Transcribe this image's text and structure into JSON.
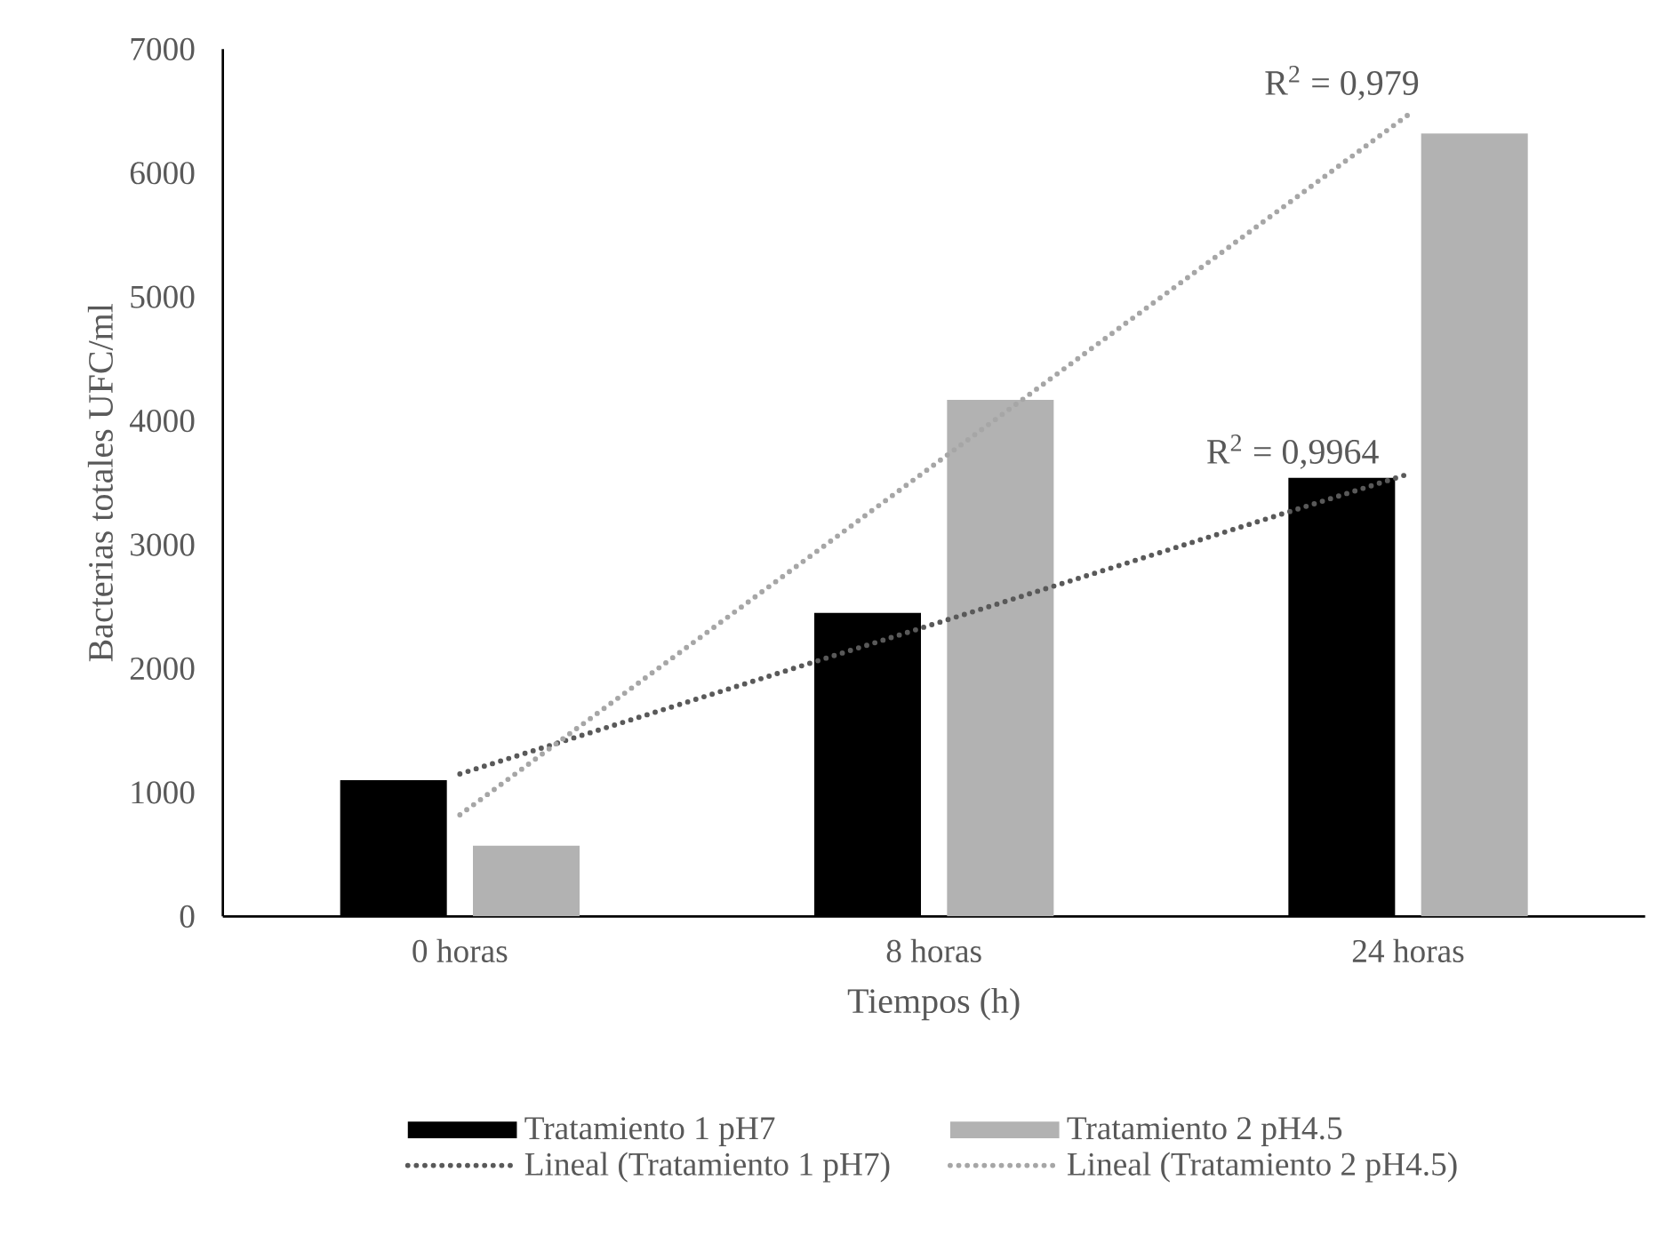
{
  "chart_data": {
    "type": "bar",
    "xlabel": "Tiempos (h)",
    "ylabel": "Bacterias totales UFC/ml",
    "categories": [
      "0 horas",
      "8 horas",
      "24 horas"
    ],
    "series": [
      {
        "name": "Tratamiento 1 pH7",
        "color": "#000000",
        "values": [
          1100,
          2450,
          3540
        ]
      },
      {
        "name": "Tratamiento 2 pH4.5",
        "color": "#b2b2b2",
        "values": [
          570,
          4170,
          6320
        ]
      },
      {
        "name": "Lineal (Tratamiento 1 pH7)",
        "type": "line",
        "color": "#595959",
        "line_style": "dotted",
        "x": [
          "0 horas",
          "24 horas"
        ],
        "values": [
          1150,
          3570
        ]
      },
      {
        "name": "Lineal (Tratamiento 2 pH4.5)",
        "type": "line",
        "color": "#a6a6a6",
        "line_style": "dotted",
        "x": [
          "0 horas",
          "24 horas"
        ],
        "values": [
          820,
          6470
        ]
      }
    ],
    "annotations": [
      {
        "text": "R$^{2}$ = 0,9964",
        "x": "24 horas",
        "y": 3570
      },
      {
        "text": "R$^{2}$ = 0,979",
        "x": "24 horas",
        "y": 6470
      }
    ],
    "ylim": [
      0,
      7000
    ],
    "yticks": [
      0,
      1000,
      2000,
      3000,
      4000,
      5000,
      6000,
      7000
    ],
    "grid": false,
    "legend": "bottom"
  }
}
